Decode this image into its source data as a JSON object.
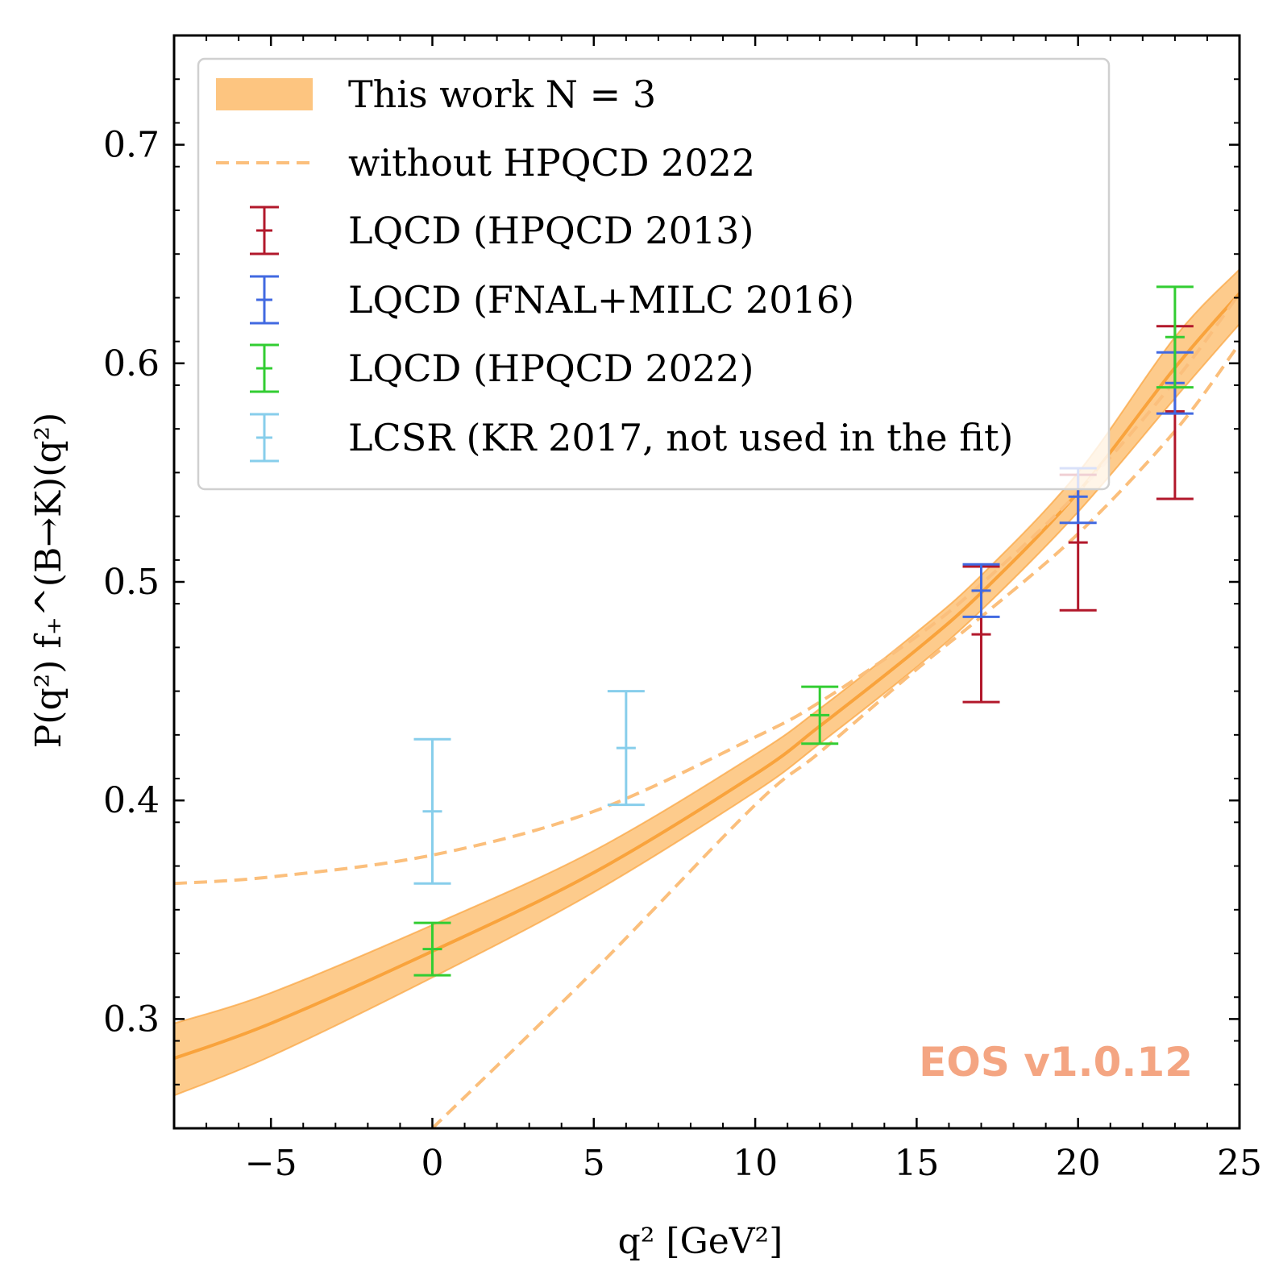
{
  "chart_data": {
    "type": "line",
    "xlabel": "q² [GeV²]",
    "ylabel": "P(q²) f₊^(B→K)(q²)",
    "xlim": [
      -8,
      25
    ],
    "ylim": [
      0.25,
      0.75
    ],
    "x_ticks": [
      -5,
      0,
      5,
      10,
      15,
      20,
      25
    ],
    "x_tick_labels": [
      "−5",
      "0",
      "5",
      "10",
      "15",
      "20",
      "25"
    ],
    "y_ticks": [
      0.3,
      0.4,
      0.5,
      0.6,
      0.7
    ],
    "y_tick_labels": [
      "0.3",
      "0.4",
      "0.5",
      "0.6",
      "0.7"
    ],
    "legend_position": "top-left",
    "watermark": "EOS v1.0.12",
    "colors": {
      "band": "#fdc580",
      "band_line": "#f9a33c",
      "dashed": "#fbbf7c",
      "hpqcd2013": "#b2182b",
      "fnal_milc2016": "#4169e1",
      "hpqcd2022": "#32cd32",
      "lcsr": "#87ceeb",
      "watermark": "#f4a582"
    },
    "band": {
      "name": "This work N = 3",
      "x": [
        -8,
        -5,
        0,
        5,
        10,
        12,
        15,
        17,
        20,
        23,
        25
      ],
      "central": [
        0.282,
        0.298,
        0.331,
        0.367,
        0.412,
        0.434,
        0.469,
        0.495,
        0.541,
        0.598,
        0.632
      ],
      "lower": [
        0.265,
        0.283,
        0.319,
        0.358,
        0.404,
        0.426,
        0.461,
        0.487,
        0.532,
        0.584,
        0.618
      ],
      "upper": [
        0.298,
        0.312,
        0.343,
        0.377,
        0.421,
        0.442,
        0.477,
        0.503,
        0.55,
        0.612,
        0.643
      ]
    },
    "dashed_series": {
      "name": "without HPQCD 2022",
      "x": [
        -8,
        -5,
        0,
        5,
        10,
        12,
        15,
        17,
        20,
        23,
        25
      ],
      "upper": [
        0.362,
        0.365,
        0.375,
        0.395,
        0.429,
        0.445,
        0.475,
        0.499,
        0.541,
        0.592,
        0.632
      ],
      "lower": [
        null,
        null,
        0.25,
        0.322,
        0.398,
        0.422,
        0.46,
        0.484,
        0.522,
        0.569,
        0.609
      ]
    },
    "error_series": [
      {
        "name": "LQCD (HPQCD 2013)",
        "color_key": "hpqcd2013",
        "points": [
          {
            "x": 17,
            "y": 0.476,
            "lo": 0.445,
            "hi": 0.507
          },
          {
            "x": 20,
            "y": 0.518,
            "lo": 0.487,
            "hi": 0.549
          },
          {
            "x": 23,
            "y": 0.578,
            "lo": 0.538,
            "hi": 0.617
          }
        ]
      },
      {
        "name": "LQCD (FNAL+MILC 2016)",
        "color_key": "fnal_milc2016",
        "points": [
          {
            "x": 17,
            "y": 0.496,
            "lo": 0.484,
            "hi": 0.508
          },
          {
            "x": 20,
            "y": 0.539,
            "lo": 0.527,
            "hi": 0.552
          },
          {
            "x": 23,
            "y": 0.591,
            "lo": 0.577,
            "hi": 0.605
          }
        ]
      },
      {
        "name": "LQCD (HPQCD 2022)",
        "color_key": "hpqcd2022",
        "points": [
          {
            "x": 0,
            "y": 0.332,
            "lo": 0.32,
            "hi": 0.344
          },
          {
            "x": 12,
            "y": 0.439,
            "lo": 0.426,
            "hi": 0.452
          },
          {
            "x": 23,
            "y": 0.612,
            "lo": 0.589,
            "hi": 0.635
          }
        ]
      },
      {
        "name": "LCSR (KR 2017, not used in the fit)",
        "color_key": "lcsr",
        "points": [
          {
            "x": 0,
            "y": 0.395,
            "lo": 0.362,
            "hi": 0.428
          },
          {
            "x": 6,
            "y": 0.424,
            "lo": 0.398,
            "hi": 0.45
          }
        ]
      }
    ]
  }
}
